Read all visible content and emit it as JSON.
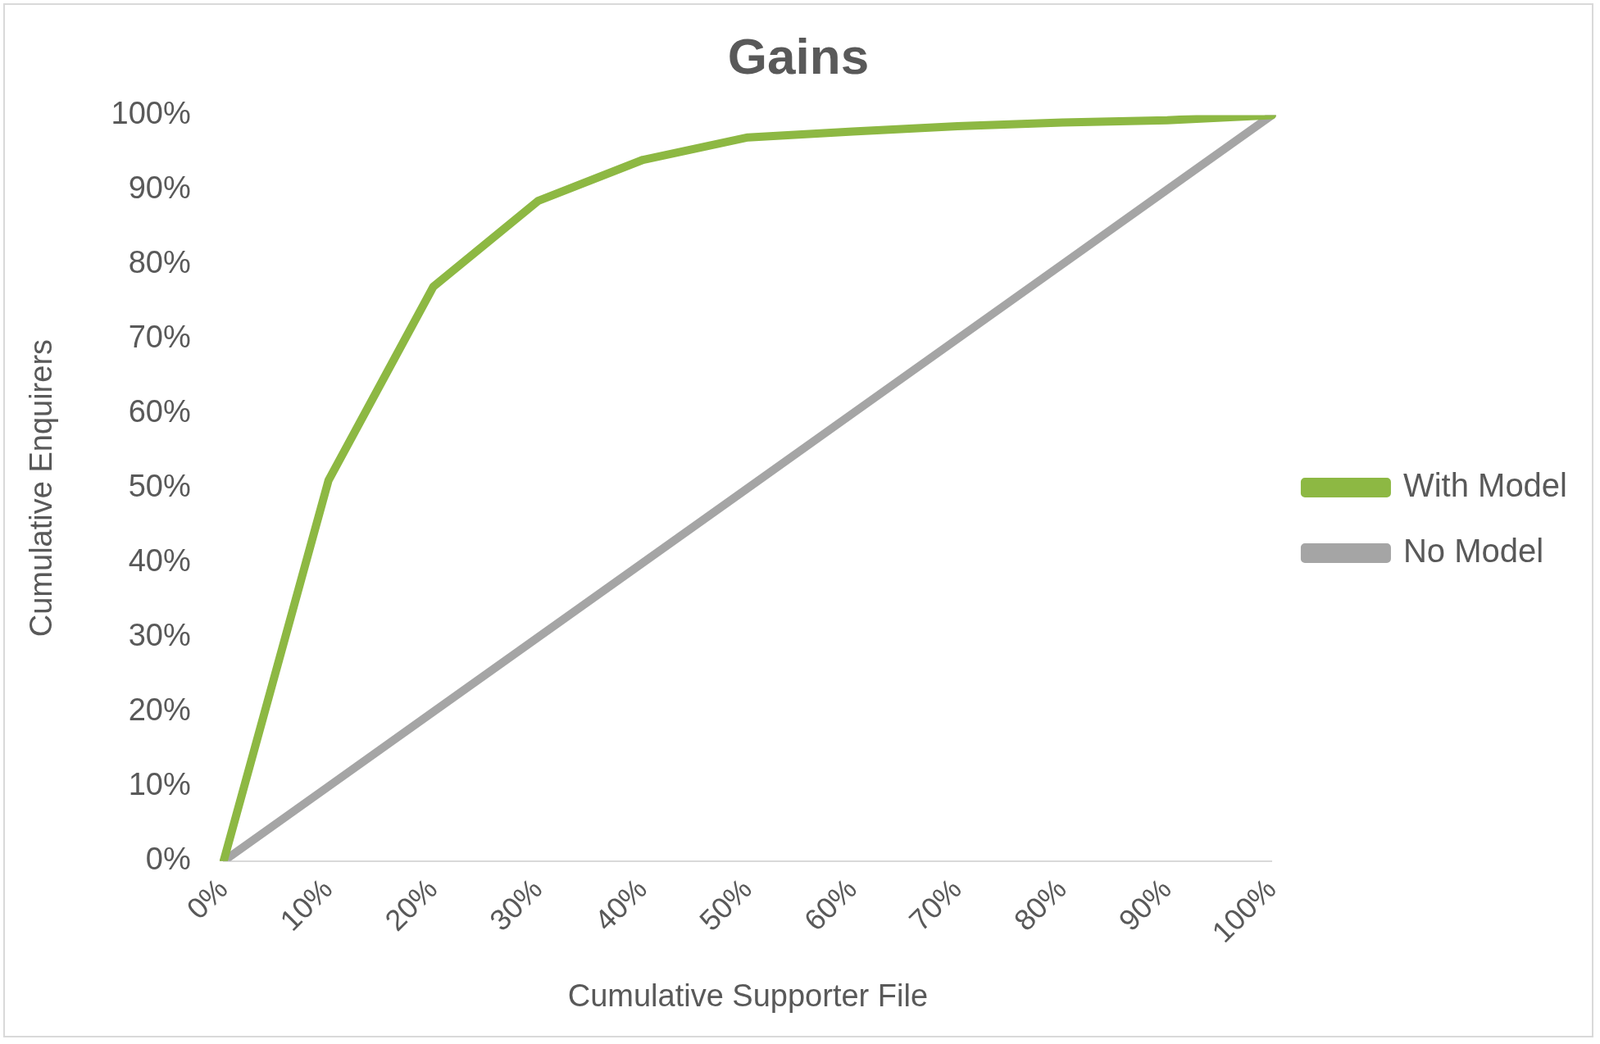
{
  "chart_data": {
    "type": "line",
    "title": "Gains",
    "x_label": "Cumulative Supporter File",
    "y_label": "Cumulative Enquirers",
    "categories": [
      "0%",
      "10%",
      "20%",
      "30%",
      "40%",
      "50%",
      "60%",
      "70%",
      "80%",
      "90%",
      "100%"
    ],
    "series": [
      {
        "name": "With Model",
        "color": "#8db843",
        "values": [
          0,
          51,
          77,
          88.5,
          94,
          97,
          97.8,
          98.5,
          99,
          99.3,
          100
        ]
      },
      {
        "name": "No Model",
        "color": "#a5a5a5",
        "values": [
          0,
          10,
          20,
          30,
          40,
          50,
          60,
          70,
          80,
          90,
          100
        ]
      }
    ],
    "ylim": [
      0,
      100
    ],
    "yticks": [
      {
        "value": 0,
        "label": "0%"
      },
      {
        "value": 10,
        "label": "10%"
      },
      {
        "value": 20,
        "label": "20%"
      },
      {
        "value": 30,
        "label": "30%"
      },
      {
        "value": 40,
        "label": "40%"
      },
      {
        "value": 50,
        "label": "50%"
      },
      {
        "value": 60,
        "label": "60%"
      },
      {
        "value": 70,
        "label": "70%"
      },
      {
        "value": 80,
        "label": "80%"
      },
      {
        "value": 90,
        "label": "90%"
      },
      {
        "value": 100,
        "label": "100%"
      }
    ],
    "grid": false,
    "legend": "right"
  }
}
